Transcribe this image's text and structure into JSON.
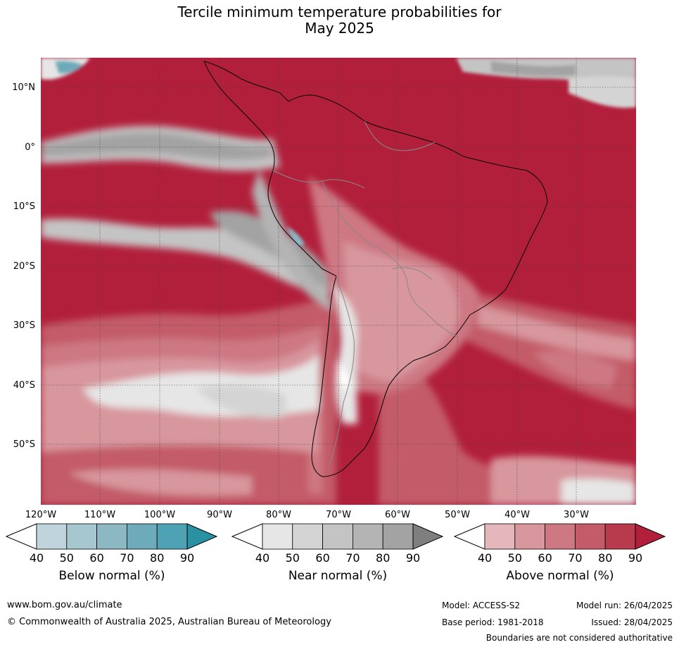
{
  "title_line1": "Tercile minimum temperature probabilities for",
  "title_line2": "May 2025",
  "lat_ticks": [
    {
      "label": "10°N",
      "lat": 10
    },
    {
      "label": "0°",
      "lat": 0
    },
    {
      "label": "10°S",
      "lat": -10
    },
    {
      "label": "20°S",
      "lat": -20
    },
    {
      "label": "30°S",
      "lat": -30
    },
    {
      "label": "40°S",
      "lat": -40
    },
    {
      "label": "50°S",
      "lat": -50
    }
  ],
  "lon_ticks": [
    {
      "label": "120°W",
      "lon": -120
    },
    {
      "label": "110°W",
      "lon": -110
    },
    {
      "label": "100°W",
      "lon": -100
    },
    {
      "label": "90°W",
      "lon": -90
    },
    {
      "label": "80°W",
      "lon": -80
    },
    {
      "label": "70°W",
      "lon": -70
    },
    {
      "label": "60°W",
      "lon": -60
    },
    {
      "label": "50°W",
      "lon": -50
    },
    {
      "label": "40°W",
      "lon": -40
    },
    {
      "label": "30°W",
      "lon": -30
    }
  ],
  "legend": {
    "below": {
      "label": "Below normal (%)",
      "colors": [
        "#bfd5db",
        "#a6c7cf",
        "#8bb8c3",
        "#6dabba",
        "#4fa2b3"
      ],
      "extend_color": "#2a91a3",
      "values": [
        "40",
        "50",
        "60",
        "70",
        "80",
        "90"
      ]
    },
    "near": {
      "label": "Near normal (%)",
      "colors": [
        "#e6e6e6",
        "#d4d4d4",
        "#c4c4c4",
        "#b4b4b4",
        "#a3a3a3"
      ],
      "extend_color": "#7f7f7f",
      "values": [
        "40",
        "50",
        "60",
        "70",
        "80",
        "90"
      ]
    },
    "above": {
      "label": "Above normal (%)",
      "colors": [
        "#e3b7bc",
        "#d8969d",
        "#cd7883",
        "#c35b68",
        "#b83a4d"
      ],
      "extend_color": "#b21f3b",
      "values": [
        "40",
        "50",
        "60",
        "70",
        "80",
        "90"
      ]
    }
  },
  "footer": {
    "website": "www.bom.gov.au/climate",
    "copyright": "© Commonwealth of Australia 2025, Australian Bureau of Meteorology",
    "model": "Model: ACCESS-S2",
    "base_period": "Base period: 1981-2018",
    "model_run": "Model run: 26/04/2025",
    "issued": "Issued: 28/04/2025",
    "disclaimer": "Boundaries are not considered authoritative"
  }
}
